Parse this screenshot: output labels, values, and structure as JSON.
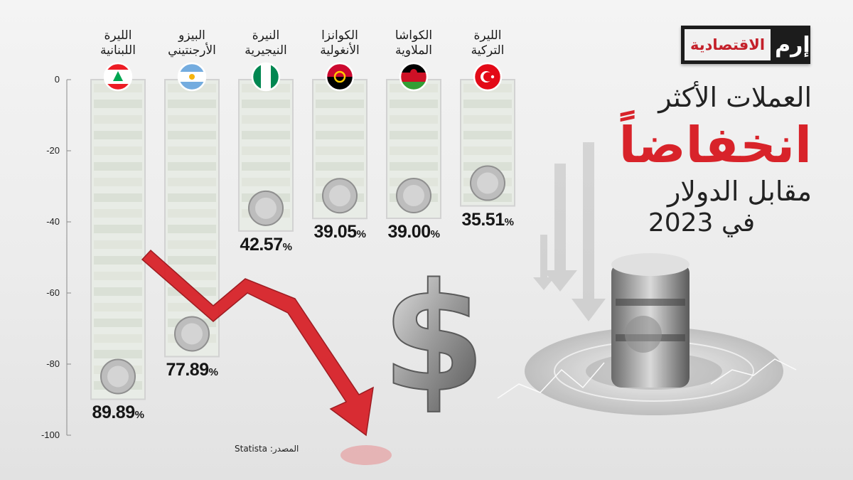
{
  "title": {
    "line1": "العملات الأكثر",
    "line2": "انخفاضاً",
    "line3": "مقابل الدولار",
    "line4": "في 2023"
  },
  "logo": {
    "main": "إرم",
    "sub": "الاقتصادية"
  },
  "source": "المصدر: Statista",
  "colors": {
    "accent": "#d8232a",
    "bar_frame": "#d2d2d2",
    "axis": "#8a8a8a"
  },
  "chart_data": {
    "type": "bar",
    "orientation": "vertical-negative",
    "categories": [
      "الليرة اللبنانية",
      "البيزو الأرجنتيني",
      "النيرة النيجيرية",
      "الكوانزا الأنغولية",
      "الكواشا الملاوية",
      "الليرة التركية"
    ],
    "categories_lines": [
      [
        "الليرة",
        "اللبنانية"
      ],
      [
        "البيزو",
        "الأرجنتيني"
      ],
      [
        "النيرة",
        "النيجيرية"
      ],
      [
        "الكوانزا",
        "الأنغولية"
      ],
      [
        "الكواشا",
        "الملاوية"
      ],
      [
        "الليرة",
        "التركية"
      ]
    ],
    "values": [
      -89.89,
      -77.89,
      -42.57,
      -39.05,
      -39.0,
      -35.51
    ],
    "value_labels": [
      "89.89",
      "77.89",
      "42.57",
      "39.05",
      "39.00",
      "35.51"
    ],
    "value_suffix": "%",
    "flags": [
      "lebanon-flag",
      "argentina-flag",
      "nigeria-flag",
      "angola-flag",
      "malawi-flag",
      "turkey-flag"
    ],
    "yticks": [
      0,
      -20,
      -40,
      -60,
      -80,
      -100
    ],
    "ylim": [
      -100,
      0
    ]
  }
}
